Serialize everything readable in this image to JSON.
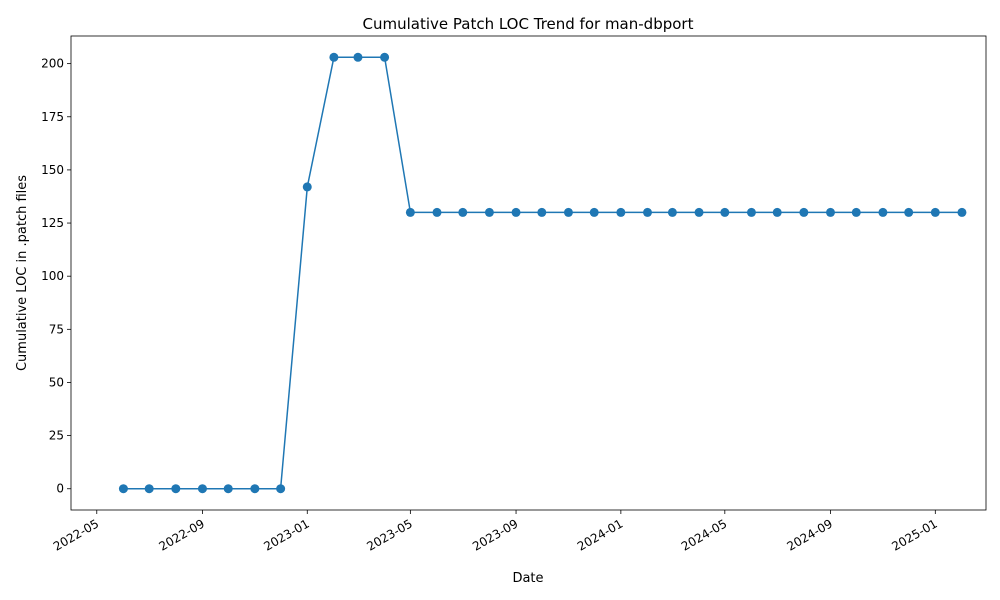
{
  "chart_data": {
    "type": "line",
    "title": "Cumulative Patch LOC Trend for man-dbport",
    "xlabel": "Date",
    "ylabel": "Cumulative LOC in .patch files",
    "x_type": "date",
    "xlim": [
      "2022-04-01",
      "2025-03-01"
    ],
    "ylim": [
      -10,
      213
    ],
    "x_ticks": [
      "2022-05-01",
      "2022-09-01",
      "2023-01-01",
      "2023-05-01",
      "2023-09-01",
      "2024-01-01",
      "2024-05-01",
      "2024-09-01",
      "2025-01-01"
    ],
    "x_tick_labels": [
      "2022-05",
      "2022-09",
      "2023-01",
      "2023-05",
      "2023-09",
      "2024-01",
      "2024-05",
      "2024-09",
      "2025-01"
    ],
    "y_ticks": [
      0,
      25,
      50,
      75,
      100,
      125,
      150,
      175,
      200
    ],
    "grid": false,
    "color": "#1f77b4",
    "x": [
      "2022-06-01",
      "2022-07-01",
      "2022-08-01",
      "2022-09-01",
      "2022-10-01",
      "2022-11-01",
      "2022-12-01",
      "2023-01-01",
      "2023-02-01",
      "2023-03-01",
      "2023-04-01",
      "2023-05-01",
      "2023-06-01",
      "2023-07-01",
      "2023-08-01",
      "2023-09-01",
      "2023-10-01",
      "2023-11-01",
      "2023-12-01",
      "2024-01-01",
      "2024-02-01",
      "2024-03-01",
      "2024-04-01",
      "2024-05-01",
      "2024-06-01",
      "2024-07-01",
      "2024-08-01",
      "2024-09-01",
      "2024-10-01",
      "2024-11-01",
      "2024-12-01",
      "2025-01-01",
      "2025-02-01"
    ],
    "y": [
      0,
      0,
      0,
      0,
      0,
      0,
      0,
      142,
      203,
      203,
      203,
      130,
      130,
      130,
      130,
      130,
      130,
      130,
      130,
      130,
      130,
      130,
      130,
      130,
      130,
      130,
      130,
      130,
      130,
      130,
      130,
      130,
      130
    ]
  }
}
